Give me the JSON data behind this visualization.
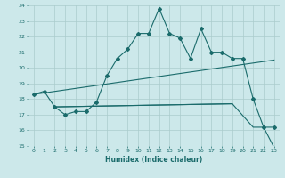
{
  "xlabel": "Humidex (Indice chaleur)",
  "ylabel": "",
  "xlim": [
    -0.5,
    23.5
  ],
  "ylim": [
    15,
    24
  ],
  "xticks": [
    0,
    1,
    2,
    3,
    4,
    5,
    6,
    7,
    8,
    9,
    10,
    11,
    12,
    13,
    14,
    15,
    16,
    17,
    18,
    19,
    20,
    21,
    22,
    23
  ],
  "yticks": [
    15,
    16,
    17,
    18,
    19,
    20,
    21,
    22,
    23,
    24
  ],
  "bg_color": "#cce8ea",
  "grid_color": "#aacccc",
  "line_color": "#1a6b6b",
  "line1_x": [
    0,
    1,
    2,
    3,
    4,
    5,
    6,
    7,
    8,
    9,
    10,
    11,
    12,
    13,
    14,
    15,
    16,
    17,
    18,
    19,
    20,
    21,
    22,
    23
  ],
  "line1_y": [
    18.3,
    18.5,
    17.5,
    17.0,
    17.2,
    17.2,
    17.8,
    19.5,
    20.6,
    21.2,
    22.2,
    22.2,
    23.8,
    22.2,
    21.9,
    20.6,
    22.5,
    21.0,
    21.0,
    20.6,
    20.6,
    18.0,
    16.2,
    16.2
  ],
  "line2_x": [
    0,
    23
  ],
  "line2_y": [
    18.3,
    20.5
  ],
  "line3_x": [
    2,
    19
  ],
  "line3_y": [
    17.5,
    17.7
  ],
  "line4_x": [
    2,
    19,
    21,
    22,
    23
  ],
  "line4_y": [
    17.5,
    17.7,
    16.2,
    16.2,
    14.9
  ]
}
